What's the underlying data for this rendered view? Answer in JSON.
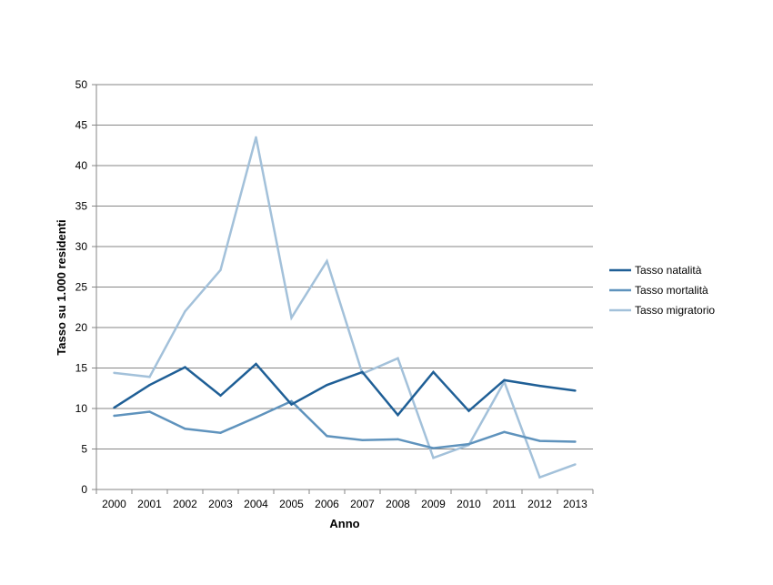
{
  "chart_data": {
    "type": "line",
    "title": "",
    "xlabel": "Anno",
    "ylabel": "Tasso su 1.000 residenti",
    "ylim": [
      0,
      50
    ],
    "yticks": [
      0,
      5,
      10,
      15,
      20,
      25,
      30,
      35,
      40,
      45,
      50
    ],
    "grid": true,
    "legend_position": "right",
    "categories": [
      "2000",
      "2001",
      "2002",
      "2003",
      "2004",
      "2005",
      "2006",
      "2007",
      "2008",
      "2009",
      "2010",
      "2011",
      "2012",
      "2013"
    ],
    "series": [
      {
        "name": "Tasso natalità",
        "color": "#1f5f96",
        "values": [
          10.1,
          12.9,
          15.1,
          11.6,
          15.5,
          10.5,
          12.9,
          14.5,
          9.2,
          14.5,
          9.7,
          13.5,
          12.8,
          12.2
        ]
      },
      {
        "name": "Tasso mortalità",
        "color": "#5f93bd",
        "values": [
          9.1,
          9.6,
          7.5,
          7.0,
          8.9,
          10.9,
          6.6,
          6.1,
          6.2,
          5.1,
          5.6,
          7.1,
          6.0,
          5.9
        ]
      },
      {
        "name": "Tasso migratorio",
        "color": "#a3c1da",
        "values": [
          14.4,
          13.9,
          22.0,
          27.1,
          43.5,
          21.2,
          28.2,
          14.3,
          16.2,
          3.9,
          5.5,
          13.3,
          1.5,
          3.1
        ]
      }
    ]
  }
}
